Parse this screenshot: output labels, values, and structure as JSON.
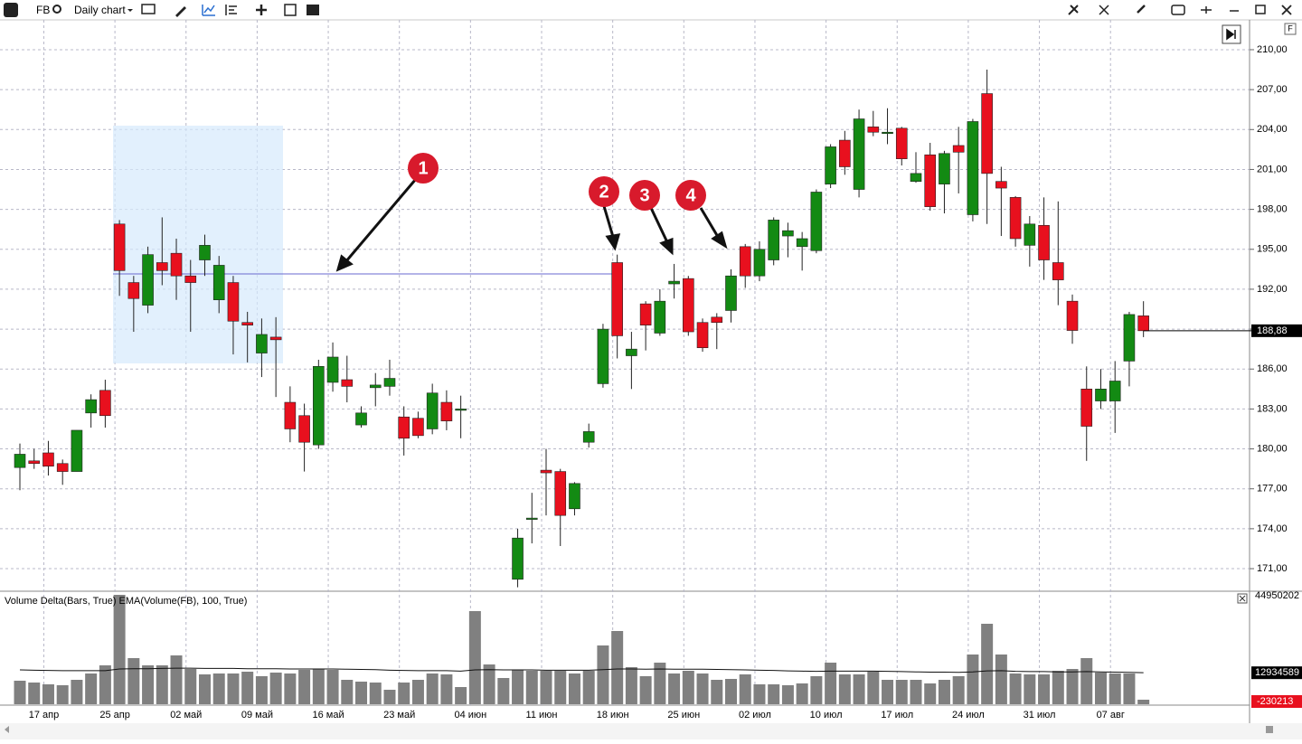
{
  "toolbar": {
    "symbol": "FB",
    "chart_kind": "Daily chart"
  },
  "chart_data": {
    "type": "candlestick",
    "categories": [
      null,
      null,
      "17 апр",
      null,
      null,
      null,
      null,
      "25 апр",
      null,
      null,
      null,
      null,
      "02 май",
      null,
      null,
      null,
      null,
      "09 май",
      null,
      null,
      null,
      null,
      "16 май",
      null,
      null,
      null,
      null,
      "23 май",
      null,
      null,
      null,
      null,
      "04 июн",
      null,
      null,
      null,
      null,
      "11 июн",
      null,
      null,
      null,
      null,
      "18 июн",
      null,
      null,
      null,
      null,
      "25 июн",
      null,
      null,
      null,
      null,
      "02 июл",
      null,
      null,
      null,
      null,
      "10 июл",
      null,
      null,
      null,
      null,
      "17 июл",
      null,
      null,
      null,
      null,
      "24 июл",
      null,
      null,
      null,
      null,
      "31 июл",
      null,
      null,
      null,
      null,
      "07 авг",
      null,
      null
    ],
    "open": [
      178.6,
      179.1,
      179.7,
      178.9,
      178.3,
      182.7,
      184.4,
      196.9,
      192.5,
      190.8,
      194.0,
      194.7,
      193.0,
      194.2,
      191.2,
      192.5,
      189.5,
      187.2,
      188.4,
      183.5,
      182.5,
      180.3,
      185.0,
      185.2,
      181.8,
      184.6,
      184.7,
      182.4,
      182.3,
      181.5,
      183.5,
      183.0,
      null,
      null,
      null,
      170.2,
      174.8,
      178.4,
      178.3,
      175.5,
      180.5,
      184.9,
      194.0,
      187.0,
      190.9,
      188.7,
      192.4,
      192.8,
      189.5,
      189.9,
      190.4,
      195.2,
      193.0,
      194.2,
      196.0,
      195.2,
      194.9,
      199.9,
      203.2,
      199.5,
      204.2,
      203.8,
      204.1,
      200.1,
      202.1,
      199.9,
      202.8,
      197.6,
      206.7,
      200.1,
      198.9,
      195.3,
      196.8,
      194.0,
      191.1,
      184.5,
      183.6,
      183.6,
      186.6,
      190.0
    ],
    "high": [
      180.4,
      180.0,
      180.6,
      179.2,
      181.4,
      184.1,
      185.2,
      197.2,
      193.0,
      195.2,
      197.4,
      195.8,
      194.2,
      196.1,
      194.5,
      193.0,
      190.3,
      189.8,
      189.9,
      184.7,
      183.4,
      186.7,
      188.0,
      187.0,
      183.2,
      185.7,
      186.7,
      183.2,
      182.8,
      184.9,
      184.4,
      184.0,
      null,
      null,
      null,
      174.0,
      176.7,
      180.0,
      178.5,
      177.5,
      181.9,
      189.4,
      194.6,
      188.8,
      191.1,
      192.0,
      193.9,
      193.0,
      189.8,
      190.2,
      193.5,
      195.4,
      195.6,
      197.4,
      197.0,
      196.3,
      199.5,
      202.9,
      203.9,
      205.5,
      205.4,
      205.6,
      204.2,
      202.3,
      203.0,
      202.4,
      204.2,
      204.8,
      208.5,
      201.2,
      199.0,
      197.5,
      198.9,
      198.6,
      191.6,
      186.2,
      186.0,
      186.6,
      190.3,
      191.1
    ],
    "low": [
      176.9,
      178.5,
      178.0,
      177.3,
      178.3,
      181.6,
      181.6,
      191.5,
      188.8,
      190.2,
      192.3,
      191.2,
      188.8,
      193.0,
      190.2,
      187.1,
      186.5,
      185.4,
      183.9,
      180.5,
      178.3,
      180.0,
      184.3,
      183.5,
      181.6,
      183.2,
      184.0,
      179.5,
      180.8,
      181.1,
      181.4,
      180.8,
      null,
      null,
      null,
      169.6,
      172.9,
      175.0,
      172.7,
      175.0,
      180.1,
      184.6,
      186.8,
      184.5,
      187.4,
      188.5,
      191.3,
      188.5,
      187.3,
      187.5,
      189.5,
      192.1,
      192.6,
      193.8,
      194.4,
      193.4,
      194.7,
      199.6,
      200.6,
      198.9,
      203.5,
      202.9,
      201.3,
      200.0,
      197.9,
      197.7,
      199.2,
      197.1,
      196.9,
      196.0,
      195.2,
      193.7,
      192.7,
      190.8,
      187.9,
      179.1,
      183.0,
      181.2,
      184.7,
      188.4
    ],
    "close": [
      179.6,
      178.9,
      178.7,
      178.3,
      181.4,
      183.7,
      182.5,
      193.4,
      191.3,
      194.6,
      193.4,
      193.0,
      192.5,
      195.3,
      193.8,
      189.6,
      189.3,
      188.6,
      188.2,
      181.5,
      180.5,
      186.2,
      186.9,
      184.7,
      182.7,
      184.8,
      185.3,
      180.8,
      181.0,
      184.2,
      182.1,
      183.0,
      null,
      null,
      null,
      173.3,
      174.8,
      178.2,
      175.0,
      177.4,
      181.3,
      189.0,
      188.5,
      187.5,
      189.3,
      191.1,
      192.6,
      188.8,
      187.6,
      189.5,
      193.0,
      193.0,
      195.0,
      197.2,
      196.4,
      195.8,
      199.3,
      202.7,
      201.2,
      204.8,
      203.8,
      203.8,
      201.8,
      200.7,
      198.2,
      202.2,
      202.3,
      204.6,
      200.7,
      199.6,
      195.8,
      196.9,
      194.2,
      192.7,
      188.9,
      181.7,
      184.5,
      185.1,
      190.1,
      188.88
    ],
    "up_color": "#138a13",
    "down_color": "#e8101e",
    "ylim": [
      169.44,
      212.24
    ],
    "yticks": [
      {
        "value": 171,
        "label": "171,00"
      },
      {
        "value": 174,
        "label": "174,00"
      },
      {
        "value": 177,
        "label": "177,00"
      },
      {
        "value": 180,
        "label": "180,00"
      },
      {
        "value": 183,
        "label": "183,00"
      },
      {
        "value": 186,
        "label": "186,00"
      },
      {
        "value": 189,
        "label": "189,00"
      },
      {
        "value": 192,
        "label": "192,00"
      },
      {
        "value": 195,
        "label": "195,00"
      },
      {
        "value": 198,
        "label": "198,00"
      },
      {
        "value": 201,
        "label": "201,00"
      },
      {
        "value": 204,
        "label": "204,00"
      },
      {
        "value": 207,
        "label": "207,00"
      },
      {
        "value": 210,
        "label": "210,00"
      }
    ],
    "last_price": {
      "value": 188.88,
      "label": "188,88"
    },
    "grid": true,
    "annotations": [
      "1",
      "2",
      "3",
      "4"
    ],
    "volume": {
      "title": "Volume Delta(Bars, True) EMA(Volume(FB), 100, True)",
      "color": "#808080",
      "values": [
        9659000,
        8916000,
        8173000,
        7801000,
        10030000,
        12631000,
        15974000,
        44950202,
        18946000,
        15974000,
        15974000,
        20060000,
        14488000,
        12259000,
        12631000,
        12631000,
        13374000,
        11516000,
        13002000,
        12631000,
        14117000,
        14488000,
        14117000,
        10030000,
        9287000,
        8916000,
        5944000,
        8916000,
        10030000,
        12631000,
        12259000,
        7058000,
        38263000,
        16346000,
        10773000,
        14117000,
        13745000,
        13745000,
        13745000,
        12631000,
        13745000,
        24147000,
        30091000,
        15231000,
        11516000,
        17088000,
        12631000,
        13745000,
        12631000,
        10030000,
        10402000,
        12259000,
        8173000,
        8173000,
        7801000,
        8544000,
        11516000,
        17088000,
        12259000,
        12259000,
        13374000,
        10030000,
        10030000,
        10030000,
        8544000,
        10030000,
        11516000,
        20432000,
        33062000,
        20432000,
        12631000,
        12259000,
        12259000,
        13745000,
        14488000,
        18946000,
        13002000,
        12631000,
        12631000,
        1857000
      ],
      "ema": [
        14100000,
        14000000,
        13900000,
        13800000,
        13800000,
        13800000,
        13800000,
        14500000,
        14600000,
        14600000,
        14700000,
        14800000,
        14800000,
        14700000,
        14700000,
        14700000,
        14600000,
        14600000,
        14600000,
        14500000,
        14500000,
        14500000,
        14500000,
        14400000,
        14300000,
        14200000,
        14000000,
        13900000,
        13800000,
        13800000,
        13800000,
        13600000,
        14100000,
        14200000,
        14100000,
        14100000,
        14100000,
        14000000,
        14000000,
        14000000,
        14000000,
        14200000,
        14500000,
        14500000,
        14400000,
        14500000,
        14400000,
        14400000,
        14400000,
        14300000,
        14200000,
        14100000,
        14000000,
        13900000,
        13700000,
        13600000,
        13500000,
        13600000,
        13600000,
        13600000,
        13600000,
        13500000,
        13400000,
        13300000,
        13200000,
        13200000,
        13100000,
        13300000,
        13700000,
        13800000,
        13500000,
        13400000,
        13400000,
        13300000,
        13300000,
        13400000,
        13300000,
        13200000,
        13100000,
        12934589
      ],
      "ylim": [
        0,
        44950202
      ],
      "yticks": [
        44950202
      ],
      "delta_last": -230213
    }
  }
}
